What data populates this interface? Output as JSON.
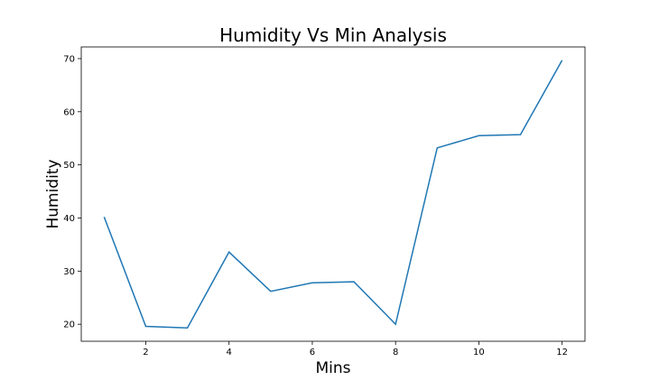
{
  "chart_data": {
    "type": "line",
    "title": "Humidity Vs Min Analysis",
    "xlabel": "Mins",
    "ylabel": "Humidity",
    "x": [
      1,
      2,
      3,
      4,
      5,
      6,
      7,
      8,
      9,
      10,
      11,
      12
    ],
    "series": [
      {
        "values": [
          40.2,
          19.6,
          19.3,
          33.6,
          26.2,
          27.8,
          28.0,
          20.0,
          53.2,
          55.5,
          55.7,
          69.7
        ],
        "color": "#1f77b4"
      }
    ],
    "xlim": [
      0.45,
      12.55
    ],
    "ylim": [
      16.8,
      72.2
    ],
    "xticks": [
      2,
      4,
      6,
      8,
      10,
      12
    ],
    "yticks": [
      20,
      30,
      40,
      50,
      60,
      70
    ],
    "grid": false,
    "legend": false
  }
}
